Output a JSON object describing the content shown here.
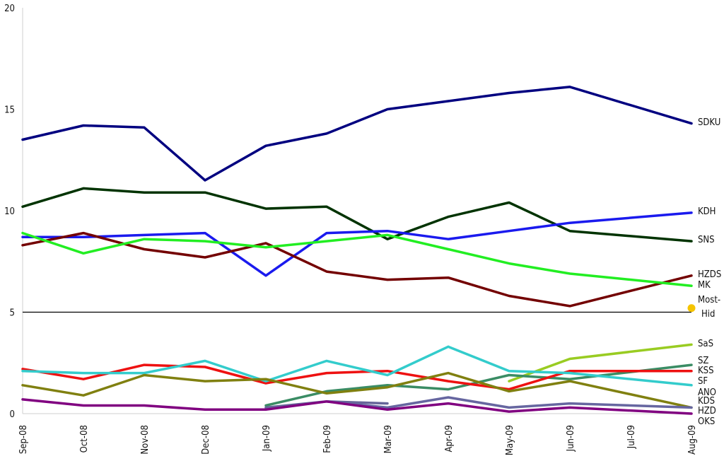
{
  "chart_data": {
    "type": "line",
    "categories": [
      "Sep-08",
      "Oct-08",
      "Nov-08",
      "Dec-08",
      "Jan-09",
      "Feb-09",
      "Mar-09",
      "Apr-09",
      "May-09",
      "Jun-09",
      "Jul-09",
      "Aug-09"
    ],
    "ylim": [
      0,
      20
    ],
    "yticks": [
      0,
      5,
      10,
      15,
      20
    ],
    "threshold": 5,
    "grid": false,
    "series": [
      {
        "name": "SDKU",
        "color": "#000080",
        "values": [
          13.5,
          14.2,
          14.1,
          11.5,
          13.2,
          13.8,
          15.0,
          15.4,
          15.8,
          16.1,
          null,
          14.3
        ]
      },
      {
        "name": "SNS",
        "color": "#003300",
        "values": [
          10.2,
          11.1,
          10.9,
          10.9,
          10.1,
          10.2,
          8.6,
          9.7,
          10.4,
          9.0,
          null,
          8.5
        ]
      },
      {
        "name": "KDH",
        "color": "#1a1aee",
        "values": [
          8.7,
          8.7,
          8.8,
          8.9,
          6.8,
          8.9,
          9.0,
          8.6,
          9.0,
          9.4,
          null,
          9.9
        ]
      },
      {
        "name": "HZDS",
        "color": "#730000",
        "values": [
          8.3,
          8.9,
          8.1,
          7.7,
          8.4,
          7.0,
          6.6,
          6.7,
          5.8,
          5.3,
          null,
          6.8
        ]
      },
      {
        "name": "MK",
        "color": "#22ee22",
        "values": [
          8.9,
          7.9,
          8.6,
          8.5,
          8.2,
          8.5,
          8.8,
          8.1,
          7.4,
          6.9,
          null,
          6.3
        ]
      },
      {
        "name": "Most-Hid",
        "color": "#f5c400",
        "values": [
          null,
          null,
          null,
          null,
          null,
          null,
          null,
          null,
          null,
          null,
          null,
          5.2
        ]
      },
      {
        "name": "SaS",
        "color": "#99cc22",
        "values": [
          null,
          null,
          null,
          null,
          null,
          null,
          null,
          null,
          1.6,
          2.7,
          null,
          3.4
        ]
      },
      {
        "name": "SZ",
        "color": "#3a8c64",
        "values": [
          null,
          null,
          null,
          null,
          0.4,
          1.1,
          1.4,
          1.2,
          1.9,
          1.7,
          null,
          2.4
        ]
      },
      {
        "name": "KSS",
        "color": "#ee1111",
        "values": [
          2.2,
          1.7,
          2.4,
          2.3,
          1.5,
          2.0,
          2.1,
          1.6,
          1.2,
          2.1,
          null,
          2.1
        ]
      },
      {
        "name": "SF",
        "color": "#33cccc",
        "values": [
          2.1,
          2.0,
          2.0,
          2.6,
          1.6,
          2.6,
          1.9,
          3.3,
          2.1,
          2.0,
          null,
          1.4
        ]
      },
      {
        "name": "ANO",
        "color": "#808010",
        "values": [
          1.4,
          0.9,
          1.9,
          1.6,
          1.7,
          1.0,
          1.3,
          2.0,
          1.1,
          1.6,
          null,
          0.3
        ]
      },
      {
        "name": "KDS",
        "color": "#666699",
        "values": [
          null,
          null,
          null,
          null,
          0.3,
          0.6,
          0.5,
          null,
          null,
          null,
          null,
          null
        ]
      },
      {
        "name": "HZD",
        "color": "#6666a0",
        "values": [
          null,
          null,
          null,
          null,
          null,
          0.6,
          0.3,
          0.8,
          0.3,
          0.5,
          null,
          0.3
        ]
      },
      {
        "name": "OKS",
        "color": "#800080",
        "values": [
          0.7,
          0.4,
          0.4,
          0.2,
          0.2,
          0.6,
          0.2,
          0.5,
          0.1,
          0.3,
          null,
          0.0
        ]
      }
    ]
  }
}
